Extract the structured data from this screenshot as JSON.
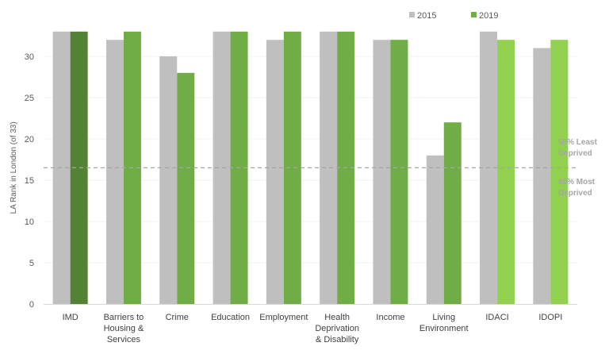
{
  "chart_data": {
    "type": "bar",
    "title": "",
    "xlabel": "",
    "ylabel": "LA Rank in London (of 33)",
    "ylim": [
      0,
      33
    ],
    "yticks": [
      0,
      5,
      10,
      15,
      20,
      25,
      30
    ],
    "grid": true,
    "legend_placement": "top-right",
    "categories": [
      [
        "IMD"
      ],
      [
        "Barriers to",
        "Housing &",
        "Services"
      ],
      [
        "Crime"
      ],
      [
        "Education"
      ],
      [
        "Employment"
      ],
      [
        "Health",
        "Deprivation",
        "& Disability"
      ],
      [
        "Income"
      ],
      [
        "Living",
        "Environment"
      ],
      [
        "IDACI"
      ],
      [
        "IDOPI"
      ]
    ],
    "series": [
      {
        "name": "2015",
        "color": "#bfbfbf",
        "values": [
          33,
          32,
          30,
          33,
          32,
          33,
          32,
          18,
          33,
          31
        ]
      },
      {
        "name": "2019",
        "color": "#70ad47",
        "values": [
          33,
          33,
          28,
          33,
          33,
          33,
          32,
          22,
          32,
          32
        ],
        "point_colors": [
          "#548235",
          "#70ad47",
          "#70ad47",
          "#70ad47",
          "#70ad47",
          "#70ad47",
          "#70ad47",
          "#70ad47",
          "#92d050",
          "#92d050"
        ]
      }
    ],
    "reference_line": {
      "value": 16.5,
      "style": "dashed",
      "color": "#a6a6a6",
      "label_above": [
        "50% Least",
        "Deprived"
      ],
      "label_below": [
        "50% Most",
        "Deprived"
      ]
    }
  }
}
